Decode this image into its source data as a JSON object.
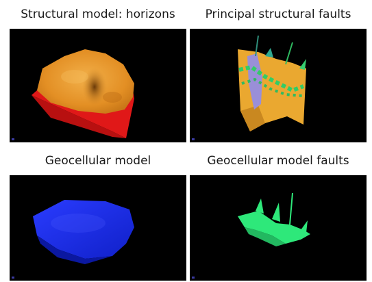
{
  "panels": [
    {
      "caption": "Structural model: horizons",
      "icon": "horizon-surface-3d-icon",
      "colors": {
        "surface": "#e8962a",
        "base": "#e01818"
      }
    },
    {
      "caption": "Principal structural faults",
      "icon": "fault-planes-3d-icon",
      "colors": {
        "fault": "#eaa830",
        "highlight": "#9a8fd8",
        "marker": "#33cc66"
      }
    },
    {
      "caption": "Geocellular model",
      "icon": "geocellular-volume-3d-icon",
      "colors": {
        "volume": "#1a2ff0"
      }
    },
    {
      "caption": "Geocellular model faults",
      "icon": "geocellular-fault-3d-icon",
      "colors": {
        "fault": "#2ee87a"
      }
    }
  ]
}
